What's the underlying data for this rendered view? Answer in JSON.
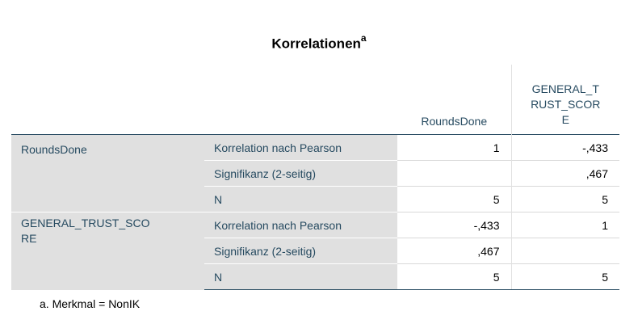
{
  "title": "Korrelationen",
  "title_footnote": "a",
  "columns": [
    "RoundsDone",
    "GENERAL_T RUST_SCOR E"
  ],
  "column_lines": [
    [
      "RoundsDone"
    ],
    [
      "GENERAL_T",
      "RUST_SCOR",
      "E"
    ]
  ],
  "rows": [
    {
      "variable": "RoundsDone",
      "variable_lines": [
        "RoundsDone"
      ],
      "stats": [
        {
          "label": "Korrelation nach Pearson",
          "values": [
            "1",
            "-,433"
          ]
        },
        {
          "label": "Signifikanz (2-seitig)",
          "values": [
            "",
            ",467"
          ]
        },
        {
          "label": "N",
          "values": [
            "5",
            "5"
          ]
        }
      ]
    },
    {
      "variable": "GENERAL_TRUST_SCO RE",
      "variable_lines": [
        "GENERAL_TRUST_SCO",
        "RE"
      ],
      "stats": [
        {
          "label": "Korrelation nach Pearson",
          "values": [
            "-,433",
            "1"
          ]
        },
        {
          "label": "Signifikanz (2-seitig)",
          "values": [
            ",467",
            ""
          ]
        },
        {
          "label": "N",
          "values": [
            "5",
            "5"
          ]
        }
      ]
    }
  ],
  "footnote": "a. Merkmal = NonIK"
}
